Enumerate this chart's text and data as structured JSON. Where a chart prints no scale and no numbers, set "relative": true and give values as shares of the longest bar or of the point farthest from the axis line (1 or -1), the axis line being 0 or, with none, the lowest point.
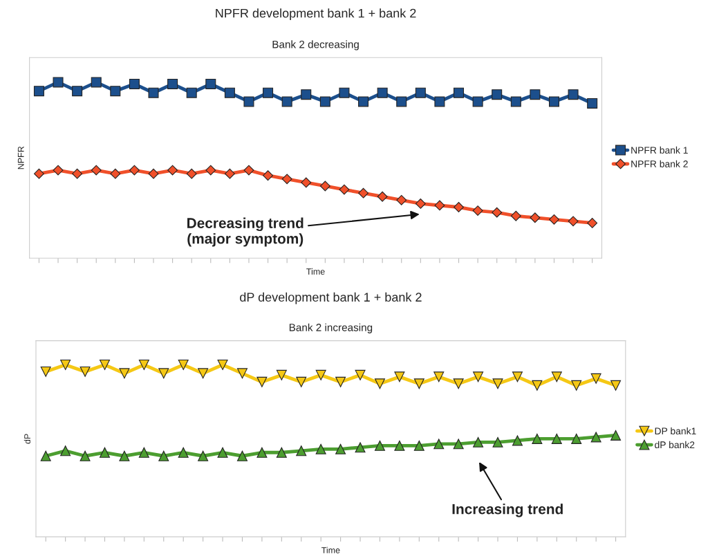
{
  "chart_data": [
    {
      "type": "line",
      "title": "NPFR development bank 1 + bank 2",
      "subtitle": "Bank 2 decreasing",
      "xlabel": "Time",
      "ylabel": "NPFR",
      "relative": true,
      "legend": "right",
      "grid": false,
      "categories": [
        null,
        null,
        null,
        null,
        null,
        null,
        null,
        null,
        null,
        null,
        null,
        null,
        null,
        null,
        null,
        null,
        null,
        null,
        null,
        null,
        null,
        null,
        null,
        null,
        null,
        null,
        null,
        null,
        null,
        null
      ],
      "series": [
        {
          "name": "NPFR bank 1",
          "color": "#1c4f8c",
          "marker": "square",
          "values": [
            0.95,
            1.0,
            0.95,
            1.0,
            0.95,
            0.99,
            0.94,
            0.99,
            0.94,
            0.99,
            0.94,
            0.89,
            0.94,
            0.89,
            0.93,
            0.89,
            0.94,
            0.89,
            0.94,
            0.89,
            0.94,
            0.89,
            0.94,
            0.89,
            0.93,
            0.89,
            0.93,
            0.89,
            0.93,
            0.88
          ]
        },
        {
          "name": "NPFR bank 2",
          "color": "#f0502a",
          "marker": "diamond",
          "values": [
            0.48,
            0.5,
            0.48,
            0.5,
            0.48,
            0.5,
            0.48,
            0.5,
            0.48,
            0.5,
            0.48,
            0.5,
            0.47,
            0.45,
            0.43,
            0.41,
            0.39,
            0.37,
            0.35,
            0.33,
            0.31,
            0.3,
            0.29,
            0.27,
            0.26,
            0.24,
            0.23,
            0.22,
            0.21,
            0.2
          ]
        }
      ],
      "annotations": [
        "Decreasing trend\n(major symptom)"
      ]
    },
    {
      "type": "line",
      "title": "dP development bank 1 + bank 2",
      "subtitle": "Bank 2 increasing",
      "xlabel": "Time",
      "ylabel": "dP",
      "relative": true,
      "legend": "right",
      "grid": false,
      "categories": [
        null,
        null,
        null,
        null,
        null,
        null,
        null,
        null,
        null,
        null,
        null,
        null,
        null,
        null,
        null,
        null,
        null,
        null,
        null,
        null,
        null,
        null,
        null,
        null,
        null,
        null,
        null,
        null,
        null,
        null
      ],
      "series": [
        {
          "name": "DP bank1",
          "color": "#f5c815",
          "marker": "triangle-down",
          "values": [
            0.96,
            1.0,
            0.96,
            1.0,
            0.95,
            1.0,
            0.95,
            1.0,
            0.95,
            1.0,
            0.95,
            0.9,
            0.94,
            0.9,
            0.94,
            0.9,
            0.94,
            0.89,
            0.93,
            0.89,
            0.93,
            0.89,
            0.93,
            0.89,
            0.93,
            0.88,
            0.93,
            0.88,
            0.92,
            0.88
          ]
        },
        {
          "name": "dP bank2",
          "color": "#4c9e30",
          "marker": "triangle",
          "values": [
            0.47,
            0.5,
            0.47,
            0.49,
            0.47,
            0.49,
            0.47,
            0.49,
            0.47,
            0.49,
            0.47,
            0.49,
            0.49,
            0.5,
            0.51,
            0.51,
            0.52,
            0.53,
            0.53,
            0.53,
            0.54,
            0.54,
            0.55,
            0.55,
            0.56,
            0.57,
            0.57,
            0.57,
            0.58,
            0.59
          ]
        }
      ],
      "annotations": [
        "Increasing trend"
      ]
    }
  ]
}
